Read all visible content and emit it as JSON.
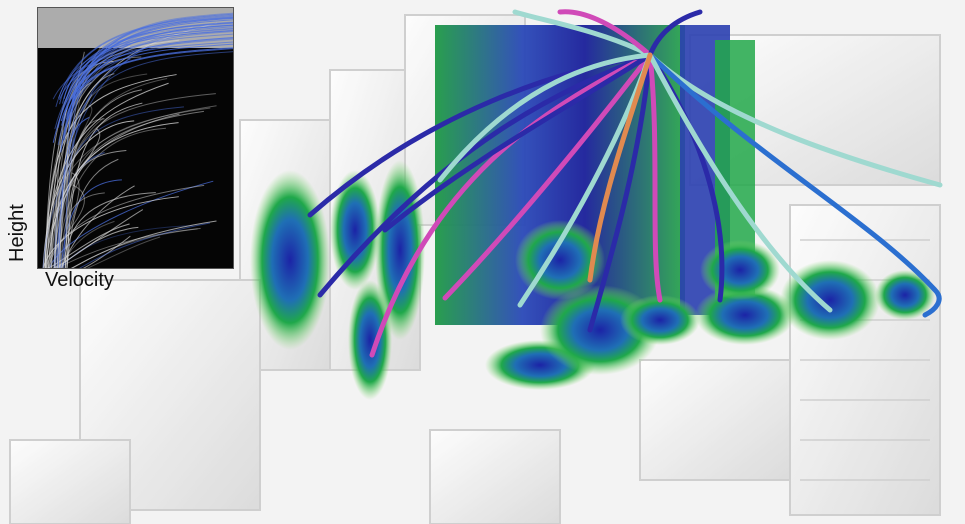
{
  "inset": {
    "x_axis_label": "Velocity",
    "y_axis_label": "Height"
  },
  "colors": {
    "ground": "#f4f4f4",
    "building": "#e6e6e6",
    "density_high": "#2a2fb0",
    "density_mid": "#1fa84a",
    "density_low": "#7fd96a",
    "streamline_a": "#2b2aa8",
    "streamline_b": "#d04ab8",
    "streamline_c": "#9fd9d0",
    "inset_background": "#050505",
    "inset_lines": "#d8d8d8",
    "inset_highlight": "#4a6fe0"
  }
}
